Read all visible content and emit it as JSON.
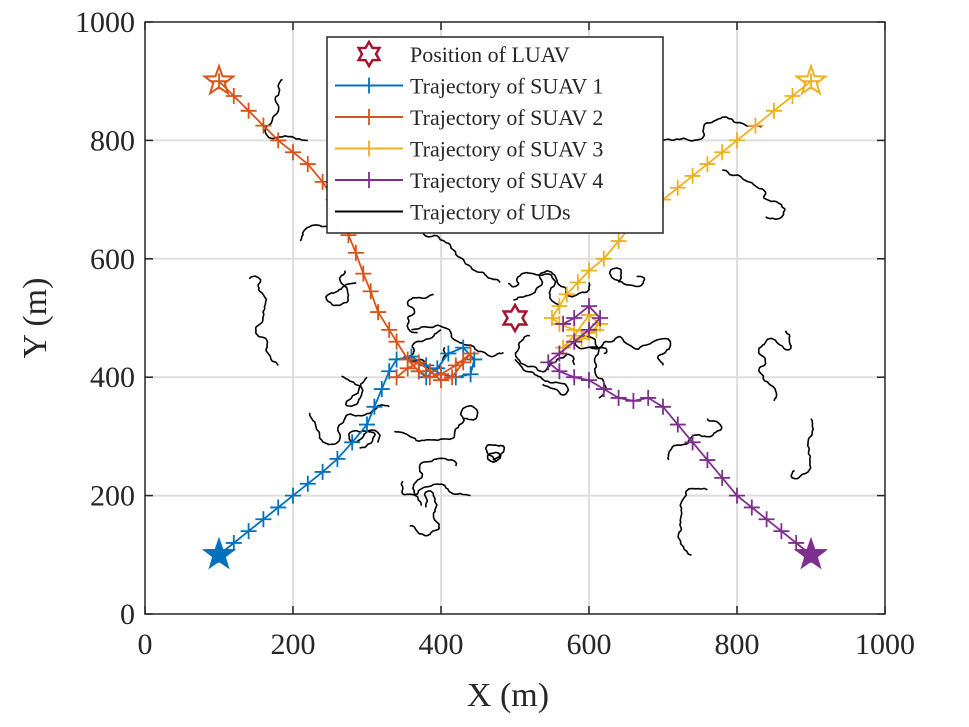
{
  "chart_data": {
    "type": "line",
    "xlabel": "X (m)",
    "ylabel": "Y (m)",
    "xlim": [
      0,
      1000
    ],
    "ylim": [
      0,
      1000
    ],
    "xticks": [
      "0",
      "200",
      "400",
      "600",
      "800",
      "1000"
    ],
    "yticks": [
      "0",
      "200",
      "400",
      "600",
      "800",
      "1000"
    ],
    "grid": true,
    "legend_position": "top-center",
    "legend": [
      "Position of LUAV",
      "Trajectory of SUAV 1",
      "Trajectory of SUAV 2",
      "Trajectory of SUAV 3",
      "Trajectory of SUAV 4",
      "Trajectory of UDs"
    ],
    "luav": {
      "name": "Position of LUAV",
      "x": 500,
      "y": 500,
      "color": "#A2142F"
    },
    "series": [
      {
        "name": "Trajectory of SUAV 1",
        "color": "#0072BD",
        "start": [
          100,
          100
        ],
        "x": [
          100,
          120,
          140,
          160,
          180,
          200,
          220,
          240,
          260,
          280,
          300,
          310,
          320,
          330,
          340,
          360,
          380,
          400,
          420,
          440,
          445,
          430,
          410,
          395,
          380,
          370
        ],
        "y": [
          100,
          120,
          140,
          160,
          180,
          200,
          220,
          240,
          262,
          290,
          320,
          350,
          380,
          410,
          430,
          435,
          420,
          405,
          400,
          405,
          430,
          450,
          440,
          415,
          400,
          410
        ]
      },
      {
        "name": "Trajectory of SUAV 2",
        "color": "#D95319",
        "start": [
          100,
          900
        ],
        "x": [
          100,
          120,
          140,
          160,
          180,
          200,
          220,
          240,
          255,
          265,
          275,
          285,
          295,
          305,
          315,
          330,
          340,
          355,
          370,
          385,
          400,
          420,
          440,
          430,
          415,
          400,
          385,
          370,
          355,
          340
        ],
        "y": [
          900,
          875,
          850,
          825,
          800,
          780,
          760,
          730,
          700,
          670,
          640,
          610,
          575,
          545,
          510,
          480,
          460,
          430,
          410,
          400,
          405,
          420,
          440,
          425,
          400,
          395,
          410,
          425,
          415,
          400
        ]
      },
      {
        "name": "Trajectory of SUAV 3",
        "color": "#EDB120",
        "start": [
          900,
          900
        ],
        "x": [
          900,
          875,
          850,
          825,
          800,
          780,
          760,
          740,
          720,
          700,
          680,
          660,
          640,
          620,
          600,
          585,
          570,
          560,
          550,
          560,
          580,
          600,
          615,
          600,
          580,
          565,
          590,
          610
        ],
        "y": [
          900,
          875,
          850,
          825,
          800,
          780,
          760,
          740,
          720,
          700,
          680,
          660,
          630,
          600,
          580,
          560,
          540,
          520,
          500,
          490,
          480,
          475,
          490,
          505,
          470,
          450,
          465,
          480
        ]
      },
      {
        "name": "Trajectory of SUAV 4",
        "color": "#7E2F8E",
        "start": [
          900,
          100
        ],
        "x": [
          900,
          880,
          860,
          840,
          820,
          800,
          780,
          760,
          740,
          720,
          700,
          680,
          660,
          640,
          620,
          600,
          580,
          560,
          545,
          560,
          580,
          600,
          615,
          600,
          580,
          565
        ],
        "y": [
          100,
          120,
          140,
          160,
          180,
          200,
          230,
          260,
          290,
          320,
          350,
          365,
          360,
          365,
          380,
          395,
          400,
          410,
          425,
          440,
          460,
          480,
          500,
          520,
          500,
          490
        ]
      }
    ],
    "ud_count": 30,
    "ud_color": "#000000"
  }
}
